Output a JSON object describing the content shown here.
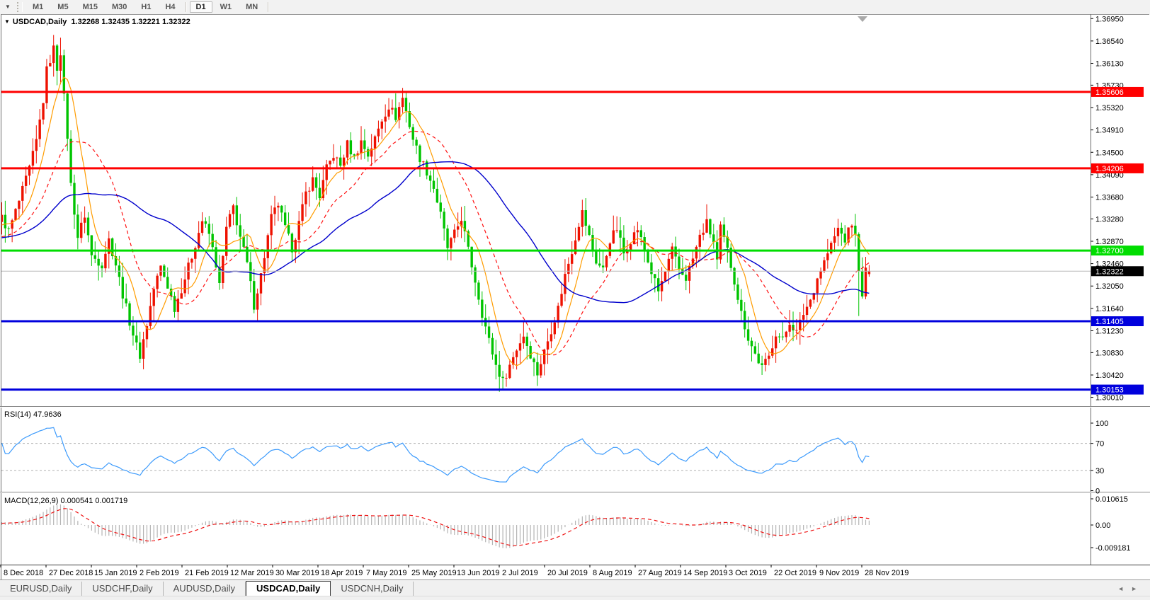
{
  "toolbar": {
    "dropdown_icon": "▼",
    "timeframes": [
      "M1",
      "M5",
      "M15",
      "M30",
      "H1",
      "H4",
      "D1",
      "W1",
      "MN"
    ],
    "active_timeframe": "D1"
  },
  "chart_header": {
    "collapse_icon": "▼",
    "symbol": "USDCAD,Daily",
    "open": "1.32268",
    "high": "1.32435",
    "low": "1.32221",
    "close": "1.32322"
  },
  "price_axis": {
    "labels": [
      "1.36950",
      "1.36540",
      "1.36130",
      "1.35730",
      "1.35320",
      "1.34910",
      "1.34500",
      "1.34090",
      "1.33680",
      "1.33280",
      "1.32870",
      "1.32460",
      "1.32050",
      "1.31640",
      "1.31230",
      "1.30830",
      "1.30420",
      "1.30010"
    ],
    "current_price_badge": "1.32322"
  },
  "date_axis": {
    "labels": [
      "8 Dec 2018",
      "27 Dec 2018",
      "15 Jan 2019",
      "2 Feb 2019",
      "21 Feb 2019",
      "12 Mar 2019",
      "30 Mar 2019",
      "18 Apr 2019",
      "7 May 2019",
      "25 May 2019",
      "13 Jun 2019",
      "2 Jul 2019",
      "20 Jul 2019",
      "8 Aug 2019",
      "27 Aug 2019",
      "14 Sep 2019",
      "3 Oct 2019",
      "22 Oct 2019",
      "9 Nov 2019",
      "28 Nov 2019"
    ]
  },
  "rsi_panel": {
    "title": "RSI(14) 47.9636",
    "axis_labels": [
      "100",
      "70",
      "30",
      "0"
    ],
    "axis_values": [
      100,
      70,
      30,
      0
    ],
    "level_lines": [
      70,
      30
    ]
  },
  "macd_panel": {
    "title": "MACD(12,26,9) 0.000541 0.001719",
    "axis_labels": [
      "0.010615",
      "0.00",
      "-0.009181"
    ],
    "axis_values": [
      0.010615,
      0.0,
      -0.009181
    ]
  },
  "tabs": {
    "items": [
      "EURUSD,Daily",
      "USDCHF,Daily",
      "AUDUSD,Daily",
      "USDCAD,Daily",
      "USDCNH,Daily"
    ],
    "active": "USDCAD,Daily",
    "scroll_left_icon": "◄",
    "scroll_right_icon": "►"
  },
  "colors": {
    "candle_up": "#ee1100",
    "candle_down": "#00c400",
    "ma_fast": "#ff9c00",
    "ma_mid": "#ff1010",
    "ma_slow": "#0000cc",
    "rsi_line": "#3d9bfc",
    "macd_histogram": "#b4b4b4",
    "macd_signal": "#ee1111",
    "hline_red": "#ff0000",
    "hline_green": "#00dd00",
    "hline_blue": "#0000dd",
    "current_price_line": "#b9b9b9",
    "badge_current_bg": "#000000",
    "badge_text": "#ffffff"
  },
  "chart_data": {
    "type": "candlestick",
    "symbol": "USDCAD",
    "timeframe": "Daily",
    "bars_visible": 252,
    "prepend_bars": 60,
    "visible_price_range": [
      1.2986,
      1.3701
    ],
    "price_axis_ticks": [
      1.3695,
      1.3654,
      1.3613,
      1.3573,
      1.3532,
      1.3491,
      1.345,
      1.3409,
      1.3368,
      1.3328,
      1.3287,
      1.3246,
      1.3205,
      1.3164,
      1.3123,
      1.3083,
      1.3042,
      1.3001
    ],
    "hlines": [
      {
        "value": 1.35606,
        "label": "1.35606",
        "color": "#ff0000",
        "width": 3
      },
      {
        "value": 1.34206,
        "label": "1.34206",
        "color": "#ff0000",
        "width": 3
      },
      {
        "value": 1.327,
        "label": "1.32700",
        "color": "#00dd00",
        "width": 3
      },
      {
        "value": 1.31405,
        "label": "1.31405",
        "color": "#0000dd",
        "width": 3
      },
      {
        "value": 1.30153,
        "label": "1.30153",
        "color": "#0000dd",
        "width": 3
      }
    ],
    "current_price": 1.32322,
    "last_ohlc": {
      "open": 1.32268,
      "high": 1.32435,
      "low": 1.32221,
      "close": 1.32322
    },
    "moving_averages": [
      {
        "period": 8,
        "color": "#ff9c00",
        "style": "solid"
      },
      {
        "period": 20,
        "color": "#ff1010",
        "style": "dash"
      },
      {
        "period": 45,
        "color": "#0000cc",
        "style": "solid"
      }
    ],
    "rsi": {
      "period": 14,
      "last_value": 47.9636,
      "levels": [
        70,
        30
      ],
      "axis": [
        100,
        70,
        30,
        0
      ]
    },
    "macd": {
      "fast": 12,
      "slow": 26,
      "signal": 9,
      "last_macd": 0.000541,
      "last_signal": 0.001719,
      "axis_max": 0.010615,
      "axis_min": -0.009181
    },
    "price_path": [
      [
        -60,
        1.324
      ],
      [
        -45,
        1.327
      ],
      [
        -30,
        1.331
      ],
      [
        -15,
        1.327
      ],
      [
        -5,
        1.331
      ],
      [
        0,
        1.333
      ],
      [
        2,
        1.3305
      ],
      [
        5,
        1.336
      ],
      [
        8,
        1.342
      ],
      [
        10,
        1.347
      ],
      [
        12,
        1.3545
      ],
      [
        13,
        1.36
      ],
      [
        15,
        1.364
      ],
      [
        16,
        1.3605
      ],
      [
        17,
        1.3635
      ],
      [
        18,
        1.355
      ],
      [
        19,
        1.348
      ],
      [
        20,
        1.339
      ],
      [
        22,
        1.3295
      ],
      [
        24,
        1.3335
      ],
      [
        26,
        1.326
      ],
      [
        29,
        1.3245
      ],
      [
        31,
        1.329
      ],
      [
        33,
        1.3245
      ],
      [
        35,
        1.319
      ],
      [
        37,
        1.314
      ],
      [
        39,
        1.3095
      ],
      [
        40,
        1.3078
      ],
      [
        42,
        1.3135
      ],
      [
        44,
        1.32
      ],
      [
        46,
        1.324
      ],
      [
        48,
        1.3205
      ],
      [
        50,
        1.3165
      ],
      [
        52,
        1.32
      ],
      [
        55,
        1.326
      ],
      [
        58,
        1.3325
      ],
      [
        60,
        1.33
      ],
      [
        62,
        1.3245
      ],
      [
        63,
        1.3205
      ],
      [
        65,
        1.331
      ],
      [
        67,
        1.335
      ],
      [
        69,
        1.3295
      ],
      [
        71,
        1.3245
      ],
      [
        73,
        1.317
      ],
      [
        75,
        1.3225
      ],
      [
        78,
        1.333
      ],
      [
        80,
        1.3355
      ],
      [
        82,
        1.331
      ],
      [
        84,
        1.3275
      ],
      [
        86,
        1.332
      ],
      [
        88,
        1.3375
      ],
      [
        90,
        1.34
      ],
      [
        92,
        1.337
      ],
      [
        94,
        1.342
      ],
      [
        96,
        1.3445
      ],
      [
        98,
        1.3425
      ],
      [
        100,
        1.3465
      ],
      [
        102,
        1.344
      ],
      [
        104,
        1.347
      ],
      [
        106,
        1.3445
      ],
      [
        108,
        1.3475
      ],
      [
        110,
        1.351
      ],
      [
        112,
        1.3535
      ],
      [
        114,
        1.3515
      ],
      [
        116,
        1.355
      ],
      [
        117,
        1.3525
      ],
      [
        119,
        1.3475
      ],
      [
        121,
        1.344
      ],
      [
        123,
        1.3415
      ],
      [
        125,
        1.3385
      ],
      [
        127,
        1.3335
      ],
      [
        129,
        1.3275
      ],
      [
        131,
        1.33
      ],
      [
        133,
        1.333
      ],
      [
        135,
        1.327
      ],
      [
        137,
        1.3215
      ],
      [
        139,
        1.3155
      ],
      [
        141,
        1.3105
      ],
      [
        143,
        1.306
      ],
      [
        145,
        1.303
      ],
      [
        147,
        1.306
      ],
      [
        149,
        1.309
      ],
      [
        151,
        1.3115
      ],
      [
        153,
        1.308
      ],
      [
        155,
        1.3045
      ],
      [
        157,
        1.3085
      ],
      [
        159,
        1.3125
      ],
      [
        161,
        1.3165
      ],
      [
        163,
        1.3225
      ],
      [
        165,
        1.327
      ],
      [
        167,
        1.332
      ],
      [
        168,
        1.334
      ],
      [
        170,
        1.3295
      ],
      [
        172,
        1.325
      ],
      [
        174,
        1.3235
      ],
      [
        176,
        1.329
      ],
      [
        178,
        1.331
      ],
      [
        180,
        1.3265
      ],
      [
        182,
        1.329
      ],
      [
        184,
        1.331
      ],
      [
        186,
        1.327
      ],
      [
        188,
        1.323
      ],
      [
        190,
        1.3195
      ],
      [
        192,
        1.323
      ],
      [
        194,
        1.327
      ],
      [
        196,
        1.3235
      ],
      [
        198,
        1.322
      ],
      [
        200,
        1.3255
      ],
      [
        202,
        1.3295
      ],
      [
        204,
        1.332
      ],
      [
        206,
        1.3285
      ],
      [
        207,
        1.325
      ],
      [
        208,
        1.331
      ],
      [
        210,
        1.327
      ],
      [
        212,
        1.3215
      ],
      [
        214,
        1.3155
      ],
      [
        216,
        1.311
      ],
      [
        218,
        1.308
      ],
      [
        220,
        1.3055
      ],
      [
        222,
        1.3075
      ],
      [
        224,
        1.312
      ],
      [
        226,
        1.3105
      ],
      [
        228,
        1.314
      ],
      [
        230,
        1.312
      ],
      [
        232,
        1.3155
      ],
      [
        234,
        1.318
      ],
      [
        236,
        1.322
      ],
      [
        238,
        1.325
      ],
      [
        240,
        1.328
      ],
      [
        242,
        1.331
      ],
      [
        244,
        1.329
      ],
      [
        246,
        1.332
      ],
      [
        247,
        1.3295
      ],
      [
        248,
        1.324
      ],
      [
        249,
        1.318
      ],
      [
        250,
        1.3235
      ],
      [
        251,
        1.32322
      ]
    ],
    "bar_overrides": {
      "15": {
        "h": 1.3665
      },
      "17": {
        "h": 1.366
      },
      "40": {
        "l": 1.3064
      },
      "116": {
        "h": 1.3568
      },
      "145": {
        "l": 1.3016
      },
      "155": {
        "l": 1.3022
      },
      "220": {
        "l": 1.3042
      },
      "248": {
        "l": 1.315
      },
      "251": {
        "o": 1.32268,
        "h": 1.32435,
        "l": 1.32221,
        "c": 1.32322
      }
    }
  }
}
